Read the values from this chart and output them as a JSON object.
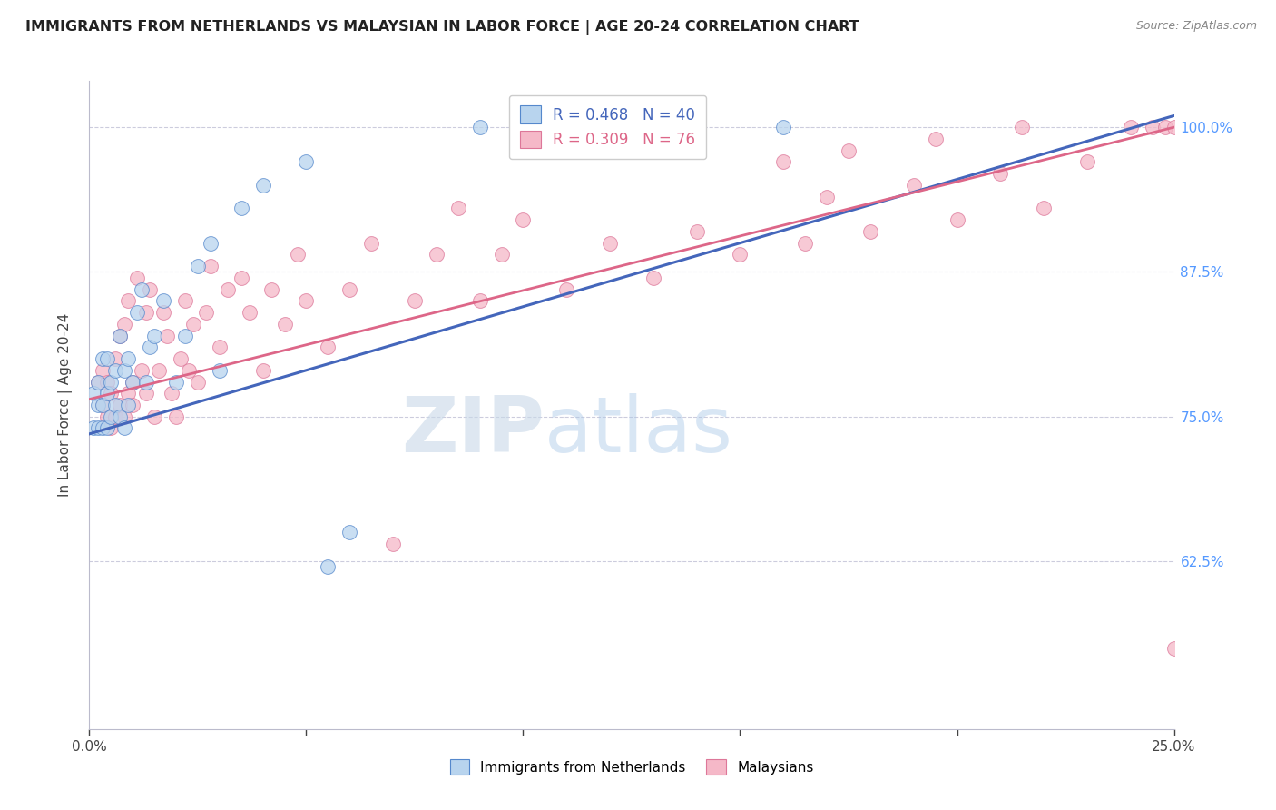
{
  "title": "IMMIGRANTS FROM NETHERLANDS VS MALAYSIAN IN LABOR FORCE | AGE 20-24 CORRELATION CHART",
  "source": "Source: ZipAtlas.com",
  "ylabel": "In Labor Force | Age 20-24",
  "r_netherlands": 0.468,
  "n_netherlands": 40,
  "r_malaysians": 0.309,
  "n_malaysians": 76,
  "color_netherlands": "#b8d4ee",
  "color_malaysians": "#f5b8c8",
  "edge_netherlands": "#5588cc",
  "edge_malaysians": "#dd7799",
  "line_netherlands": "#4466bb",
  "line_malaysians": "#dd6688",
  "xmin": 0.0,
  "xmax": 0.25,
  "ymin": 0.48,
  "ymax": 1.04,
  "yticks": [
    0.625,
    0.75,
    0.875,
    1.0
  ],
  "ytick_labels": [
    "62.5%",
    "75.0%",
    "87.5%",
    "100.0%"
  ],
  "watermark_zip": "ZIP",
  "watermark_atlas": "atlas",
  "nl_line_x": [
    0.0,
    0.25
  ],
  "nl_line_y": [
    0.735,
    1.01
  ],
  "my_line_x": [
    0.0,
    0.25
  ],
  "my_line_y": [
    0.765,
    1.0
  ],
  "nl_x": [
    0.001,
    0.001,
    0.002,
    0.002,
    0.002,
    0.003,
    0.003,
    0.003,
    0.004,
    0.004,
    0.004,
    0.005,
    0.005,
    0.006,
    0.006,
    0.007,
    0.007,
    0.008,
    0.008,
    0.009,
    0.009,
    0.01,
    0.011,
    0.012,
    0.013,
    0.014,
    0.015,
    0.017,
    0.02,
    0.022,
    0.025,
    0.028,
    0.03,
    0.035,
    0.04,
    0.05,
    0.055,
    0.06,
    0.09,
    0.16
  ],
  "nl_y": [
    0.74,
    0.77,
    0.74,
    0.76,
    0.78,
    0.74,
    0.76,
    0.8,
    0.74,
    0.77,
    0.8,
    0.75,
    0.78,
    0.76,
    0.79,
    0.75,
    0.82,
    0.74,
    0.79,
    0.76,
    0.8,
    0.78,
    0.84,
    0.86,
    0.78,
    0.81,
    0.82,
    0.85,
    0.78,
    0.82,
    0.88,
    0.9,
    0.79,
    0.93,
    0.95,
    0.97,
    0.62,
    0.65,
    1.0,
    1.0
  ],
  "my_x": [
    0.002,
    0.003,
    0.003,
    0.004,
    0.004,
    0.005,
    0.005,
    0.006,
    0.006,
    0.007,
    0.007,
    0.008,
    0.008,
    0.009,
    0.009,
    0.01,
    0.01,
    0.011,
    0.012,
    0.013,
    0.013,
    0.014,
    0.015,
    0.016,
    0.017,
    0.018,
    0.019,
    0.02,
    0.021,
    0.022,
    0.023,
    0.024,
    0.025,
    0.027,
    0.028,
    0.03,
    0.032,
    0.035,
    0.037,
    0.04,
    0.042,
    0.045,
    0.048,
    0.05,
    0.055,
    0.06,
    0.065,
    0.07,
    0.075,
    0.08,
    0.085,
    0.09,
    0.095,
    0.1,
    0.11,
    0.12,
    0.13,
    0.14,
    0.15,
    0.16,
    0.165,
    0.17,
    0.175,
    0.18,
    0.19,
    0.195,
    0.2,
    0.21,
    0.215,
    0.22,
    0.23,
    0.24,
    0.245,
    0.248,
    0.25,
    0.25
  ],
  "my_y": [
    0.78,
    0.76,
    0.79,
    0.75,
    0.78,
    0.74,
    0.77,
    0.75,
    0.8,
    0.76,
    0.82,
    0.75,
    0.83,
    0.77,
    0.85,
    0.76,
    0.78,
    0.87,
    0.79,
    0.77,
    0.84,
    0.86,
    0.75,
    0.79,
    0.84,
    0.82,
    0.77,
    0.75,
    0.8,
    0.85,
    0.79,
    0.83,
    0.78,
    0.84,
    0.88,
    0.81,
    0.86,
    0.87,
    0.84,
    0.79,
    0.86,
    0.83,
    0.89,
    0.85,
    0.81,
    0.86,
    0.9,
    0.64,
    0.85,
    0.89,
    0.93,
    0.85,
    0.89,
    0.92,
    0.86,
    0.9,
    0.87,
    0.91,
    0.89,
    0.97,
    0.9,
    0.94,
    0.98,
    0.91,
    0.95,
    0.99,
    0.92,
    0.96,
    1.0,
    0.93,
    0.97,
    1.0,
    1.0,
    1.0,
    1.0,
    0.55
  ]
}
